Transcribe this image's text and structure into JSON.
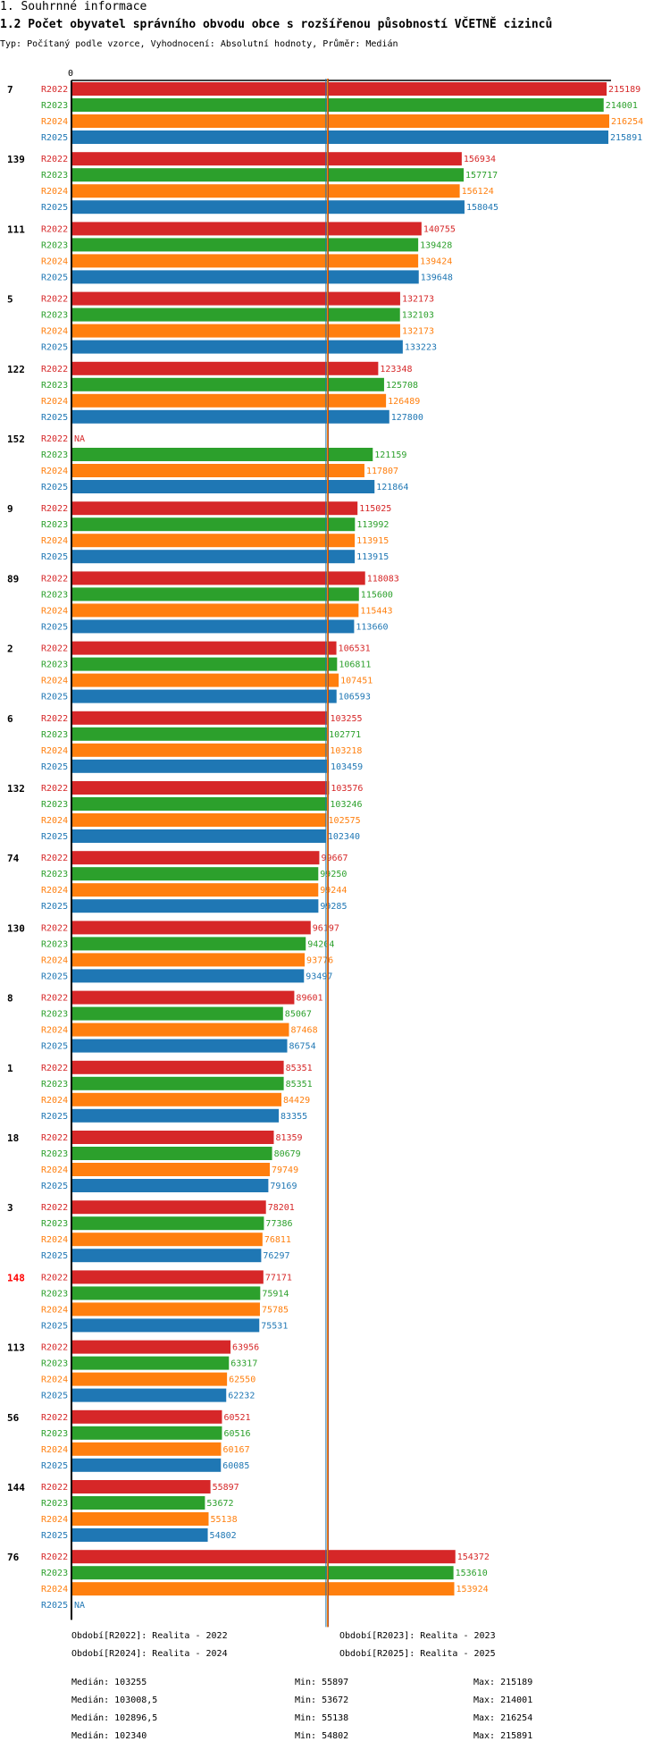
{
  "header": {
    "section": "1. Souhrnné informace",
    "title": "1.2 Počet obyvatel správního obvodu obce s rozšířenou působností VČETNĚ cizinců",
    "subtitle": "Typ: Počítaný podle vzorce, Vyhodnocení: Absolutní hodnoty, Průměr: Medián"
  },
  "colors": {
    "R2022": "#d62728",
    "R2023": "#2ca02c",
    "R2024": "#ff7f0e",
    "R2025": "#1f77b4",
    "highlight": "#ff0000"
  },
  "chart_data": {
    "type": "bar",
    "orientation": "horizontal",
    "axis_zero_label": "0",
    "xlim": [
      0,
      216254
    ],
    "series_names": [
      "R2022",
      "R2023",
      "R2024",
      "R2025"
    ],
    "na_label": "NA",
    "categories": [
      {
        "label": "7",
        "values": [
          215189,
          214001,
          216254,
          215891
        ]
      },
      {
        "label": "139",
        "values": [
          156934,
          157717,
          156124,
          158045
        ]
      },
      {
        "label": "111",
        "values": [
          140755,
          139428,
          139424,
          139648
        ]
      },
      {
        "label": "5",
        "values": [
          132173,
          132103,
          132173,
          133223
        ]
      },
      {
        "label": "122",
        "values": [
          123348,
          125708,
          126489,
          127800
        ]
      },
      {
        "label": "152",
        "values": [
          null,
          121159,
          117807,
          121864
        ]
      },
      {
        "label": "9",
        "values": [
          115025,
          113992,
          113915,
          113915
        ]
      },
      {
        "label": "89",
        "values": [
          118083,
          115600,
          115443,
          113660
        ]
      },
      {
        "label": "2",
        "values": [
          106531,
          106811,
          107451,
          106593
        ]
      },
      {
        "label": "6",
        "values": [
          103255,
          102771,
          103218,
          103459
        ]
      },
      {
        "label": "132",
        "values": [
          103576,
          103246,
          102575,
          102340
        ]
      },
      {
        "label": "74",
        "values": [
          99667,
          99250,
          99244,
          99285
        ]
      },
      {
        "label": "130",
        "values": [
          96197,
          94204,
          93776,
          93497
        ]
      },
      {
        "label": "8",
        "values": [
          89601,
          85067,
          87468,
          86754
        ]
      },
      {
        "label": "1",
        "values": [
          85351,
          85351,
          84429,
          83355
        ]
      },
      {
        "label": "18",
        "values": [
          81359,
          80679,
          79749,
          79169
        ]
      },
      {
        "label": "3",
        "values": [
          78201,
          77386,
          76811,
          76297
        ]
      },
      {
        "label": "148",
        "values": [
          77171,
          75914,
          75785,
          75531
        ],
        "highlight": true
      },
      {
        "label": "113",
        "values": [
          63956,
          63317,
          62550,
          62232
        ]
      },
      {
        "label": "56",
        "values": [
          60521,
          60516,
          60167,
          60085
        ]
      },
      {
        "label": "144",
        "values": [
          55897,
          53672,
          55138,
          54802
        ]
      },
      {
        "label": "76",
        "values": [
          154372,
          153610,
          153924,
          null
        ]
      }
    ],
    "medians": [
      103255,
      103008.5,
      102896.5,
      102340
    ]
  },
  "legend": {
    "items": [
      "Období[R2022]: Realita - 2022",
      "Období[R2023]: Realita - 2023",
      "Období[R2024]: Realita - 2024",
      "Období[R2025]: Realita - 2025"
    ]
  },
  "stats": {
    "rows": [
      {
        "median": "Medián: 103255",
        "min": "Min: 55897",
        "max": "Max: 215189"
      },
      {
        "median": "Medián: 103008,5",
        "min": "Min: 53672",
        "max": "Max: 214001"
      },
      {
        "median": "Medián: 102896,5",
        "min": "Min: 55138",
        "max": "Max: 216254"
      },
      {
        "median": "Medián: 102340",
        "min": "Min: 54802",
        "max": "Max: 215891"
      }
    ]
  }
}
